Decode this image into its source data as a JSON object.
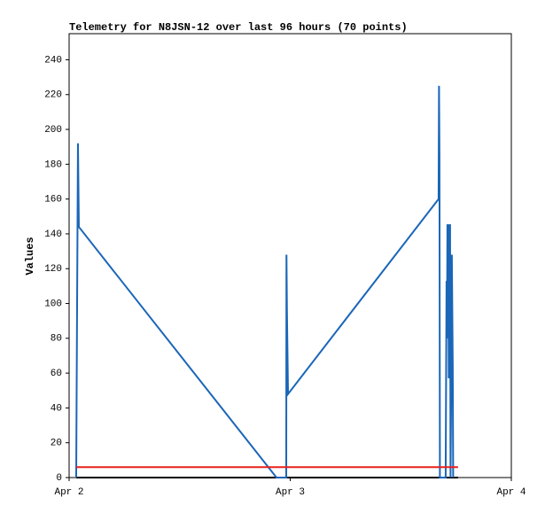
{
  "chart_data": {
    "type": "line",
    "title": "Telemetry for N8JSN-12 over last 96 hours (70 points)",
    "y_label": "Values",
    "xlim": [
      2,
      4
    ],
    "xticks": [
      {
        "value": 2,
        "label": "Apr 2"
      },
      {
        "value": 3,
        "label": "Apr 3"
      },
      {
        "value": 4,
        "label": "Apr 4"
      }
    ],
    "ylim": [
      0,
      255
    ],
    "yticks": [
      0,
      20,
      40,
      60,
      80,
      100,
      120,
      140,
      160,
      180,
      200,
      220,
      240
    ],
    "grid": false,
    "series": [
      {
        "color": "#000000",
        "x": [
          2.032,
          3.759
        ],
        "values": [
          0,
          0
        ]
      },
      {
        "color": "#1a66b8",
        "x": [
          2.032,
          2.036,
          2.04,
          2.044,
          2.938,
          2.982,
          2.983,
          2.985,
          2.99,
          3.671,
          3.673,
          3.675,
          3.677,
          3.703,
          3.705,
          3.707,
          3.709,
          3.711,
          3.715,
          3.717,
          3.719,
          3.723,
          3.725,
          3.729,
          3.731,
          3.735,
          3.737
        ],
        "values": [
          0,
          97,
          192,
          144,
          0,
          0,
          128,
          97,
          48,
          160,
          225,
          184,
          0,
          0,
          56,
          113,
          80,
          145,
          145,
          57,
          145,
          145,
          0,
          65,
          128,
          65,
          0
        ]
      },
      {
        "color": "#e8211d",
        "x": [
          2.032,
          3.759
        ],
        "values": [
          6,
          6
        ]
      }
    ]
  }
}
